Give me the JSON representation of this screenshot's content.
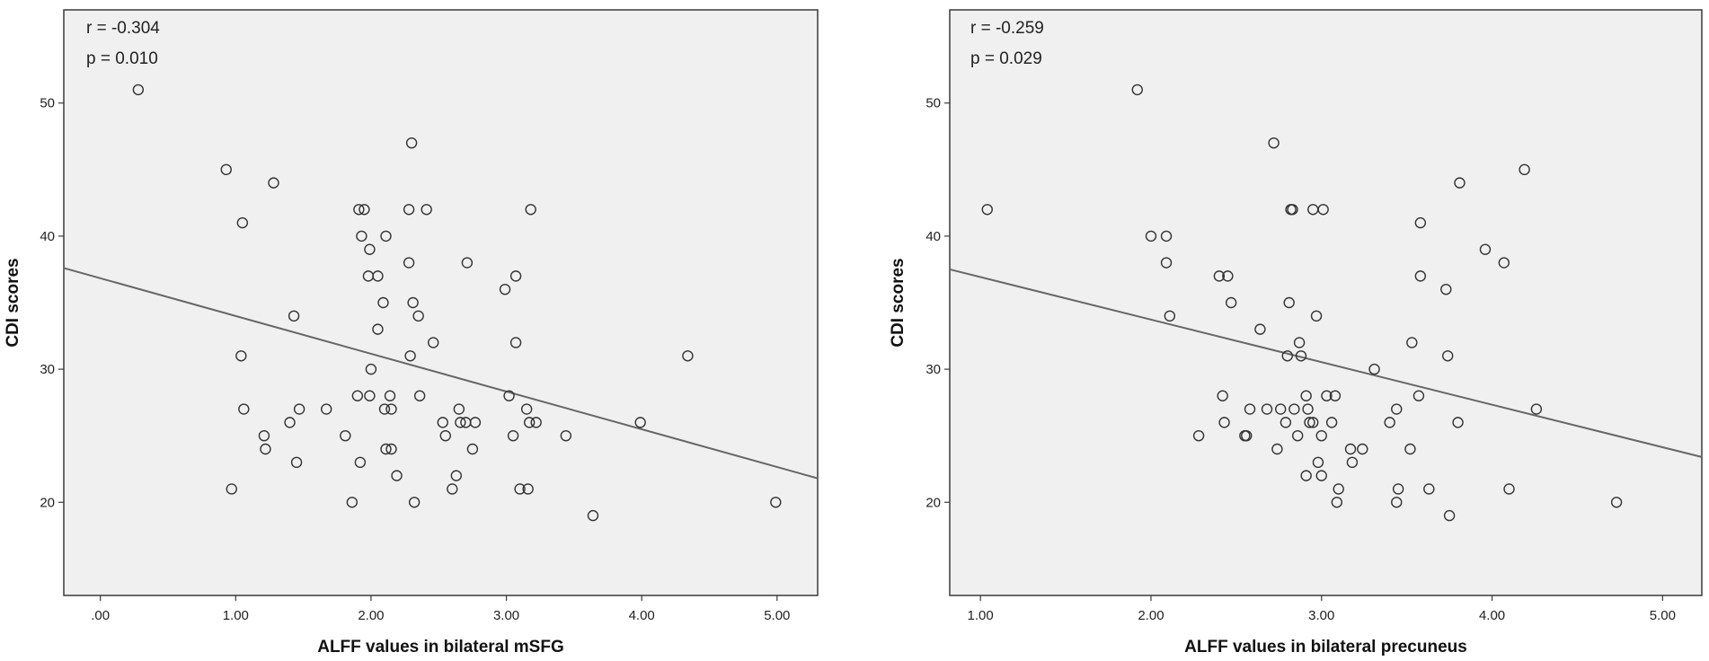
{
  "chart_data": [
    {
      "type": "scatter",
      "xlabel": "ALFF values in bilateral mSFG",
      "ylabel": "CDI scores",
      "annotations": [
        "r = -0.304",
        "p = 0.010"
      ],
      "xlim": [
        -0.27,
        5.3
      ],
      "ylim": [
        13.0,
        57.0
      ],
      "x_ticks": [
        0,
        1,
        2,
        3,
        4,
        5
      ],
      "x_tick_labels": [
        ".00",
        "1.00",
        "2.00",
        "3.00",
        "4.00",
        "5.00"
      ],
      "y_ticks": [
        20,
        30,
        40,
        50
      ],
      "y_tick_labels": [
        "20",
        "30",
        "40",
        "50"
      ],
      "fit_line": {
        "x": [
          -0.27,
          5.3
        ],
        "y": [
          37.6,
          21.8
        ]
      },
      "grid": false,
      "colors": {
        "background": "#f0f0f0",
        "marker": "#333333",
        "line": "#666666"
      },
      "points": [
        [
          0.28,
          51
        ],
        [
          0.93,
          45
        ],
        [
          1.05,
          41
        ],
        [
          1.28,
          44
        ],
        [
          1.04,
          31
        ],
        [
          1.06,
          27
        ],
        [
          0.97,
          21
        ],
        [
          1.21,
          25
        ],
        [
          1.22,
          24
        ],
        [
          1.4,
          26
        ],
        [
          1.43,
          34
        ],
        [
          1.45,
          23
        ],
        [
          1.47,
          27
        ],
        [
          1.67,
          27
        ],
        [
          1.81,
          25
        ],
        [
          1.86,
          20
        ],
        [
          1.9,
          28
        ],
        [
          1.91,
          42
        ],
        [
          1.95,
          42
        ],
        [
          1.93,
          40
        ],
        [
          1.92,
          23
        ],
        [
          1.99,
          39
        ],
        [
          1.98,
          37
        ],
        [
          2.0,
          30
        ],
        [
          1.99,
          28
        ],
        [
          2.05,
          37
        ],
        [
          2.05,
          33
        ],
        [
          2.09,
          35
        ],
        [
          2.1,
          27
        ],
        [
          2.11,
          40
        ],
        [
          2.11,
          24
        ],
        [
          2.14,
          28
        ],
        [
          2.15,
          27
        ],
        [
          2.15,
          24
        ],
        [
          2.19,
          22
        ],
        [
          2.28,
          42
        ],
        [
          2.28,
          38
        ],
        [
          2.29,
          31
        ],
        [
          2.3,
          47
        ],
        [
          2.31,
          35
        ],
        [
          2.32,
          20
        ],
        [
          2.35,
          34
        ],
        [
          2.36,
          28
        ],
        [
          2.41,
          42
        ],
        [
          2.46,
          32
        ],
        [
          2.53,
          26
        ],
        [
          2.55,
          25
        ],
        [
          2.6,
          21
        ],
        [
          2.63,
          22
        ],
        [
          2.65,
          27
        ],
        [
          2.66,
          26
        ],
        [
          2.7,
          26
        ],
        [
          2.71,
          38
        ],
        [
          2.75,
          24
        ],
        [
          2.77,
          26
        ],
        [
          2.99,
          36
        ],
        [
          3.02,
          28
        ],
        [
          3.05,
          25
        ],
        [
          3.07,
          37
        ],
        [
          3.07,
          32
        ],
        [
          3.1,
          21
        ],
        [
          3.15,
          27
        ],
        [
          3.16,
          21
        ],
        [
          3.17,
          26
        ],
        [
          3.18,
          42
        ],
        [
          3.22,
          26
        ],
        [
          3.44,
          25
        ],
        [
          3.64,
          19
        ],
        [
          3.99,
          26
        ],
        [
          4.34,
          31
        ],
        [
          4.99,
          20
        ]
      ]
    },
    {
      "type": "scatter",
      "xlabel": "ALFF values in bilateral precuneus",
      "ylabel": "CDI scores",
      "annotations": [
        "r = -0.259",
        "p = 0.029"
      ],
      "xlim": [
        0.82,
        5.23
      ],
      "ylim": [
        13.0,
        57.0
      ],
      "x_ticks": [
        1,
        2,
        3,
        4,
        5
      ],
      "x_tick_labels": [
        "1.00",
        "2.00",
        "3.00",
        "4.00",
        "5.00"
      ],
      "y_ticks": [
        20,
        30,
        40,
        50
      ],
      "y_tick_labels": [
        "20",
        "30",
        "40",
        "50"
      ],
      "fit_line": {
        "x": [
          0.82,
          5.23
        ],
        "y": [
          37.5,
          23.4
        ]
      },
      "grid": false,
      "colors": {
        "background": "#f0f0f0",
        "marker": "#333333",
        "line": "#666666"
      },
      "points": [
        [
          1.04,
          42
        ],
        [
          1.92,
          51
        ],
        [
          2.0,
          40
        ],
        [
          2.09,
          40
        ],
        [
          2.09,
          38
        ],
        [
          2.11,
          34
        ],
        [
          2.28,
          25
        ],
        [
          2.4,
          37
        ],
        [
          2.42,
          28
        ],
        [
          2.43,
          26
        ],
        [
          2.45,
          37
        ],
        [
          2.47,
          35
        ],
        [
          2.55,
          25
        ],
        [
          2.56,
          25
        ],
        [
          2.58,
          27
        ],
        [
          2.64,
          33
        ],
        [
          2.68,
          27
        ],
        [
          2.72,
          47
        ],
        [
          2.74,
          24
        ],
        [
          2.76,
          27
        ],
        [
          2.79,
          26
        ],
        [
          2.8,
          31
        ],
        [
          2.81,
          35
        ],
        [
          2.82,
          42
        ],
        [
          2.83,
          42
        ],
        [
          2.84,
          27
        ],
        [
          2.86,
          25
        ],
        [
          2.87,
          32
        ],
        [
          2.88,
          31
        ],
        [
          2.91,
          28
        ],
        [
          2.91,
          22
        ],
        [
          2.92,
          27
        ],
        [
          2.93,
          26
        ],
        [
          2.95,
          26
        ],
        [
          2.95,
          42
        ],
        [
          2.97,
          34
        ],
        [
          2.98,
          23
        ],
        [
          3.0,
          25
        ],
        [
          3.0,
          22
        ],
        [
          3.01,
          42
        ],
        [
          3.03,
          28
        ],
        [
          3.06,
          26
        ],
        [
          3.08,
          28
        ],
        [
          3.09,
          20
        ],
        [
          3.1,
          21
        ],
        [
          3.17,
          24
        ],
        [
          3.18,
          23
        ],
        [
          3.24,
          24
        ],
        [
          3.31,
          30
        ],
        [
          3.4,
          26
        ],
        [
          3.44,
          27
        ],
        [
          3.44,
          20
        ],
        [
          3.45,
          21
        ],
        [
          3.52,
          24
        ],
        [
          3.53,
          32
        ],
        [
          3.57,
          28
        ],
        [
          3.58,
          41
        ],
        [
          3.58,
          37
        ],
        [
          3.63,
          21
        ],
        [
          3.73,
          36
        ],
        [
          3.74,
          31
        ],
        [
          3.75,
          19
        ],
        [
          3.8,
          26
        ],
        [
          3.81,
          44
        ],
        [
          3.96,
          39
        ],
        [
          4.07,
          38
        ],
        [
          4.1,
          21
        ],
        [
          4.19,
          45
        ],
        [
          4.26,
          27
        ],
        [
          4.73,
          20
        ]
      ]
    }
  ]
}
